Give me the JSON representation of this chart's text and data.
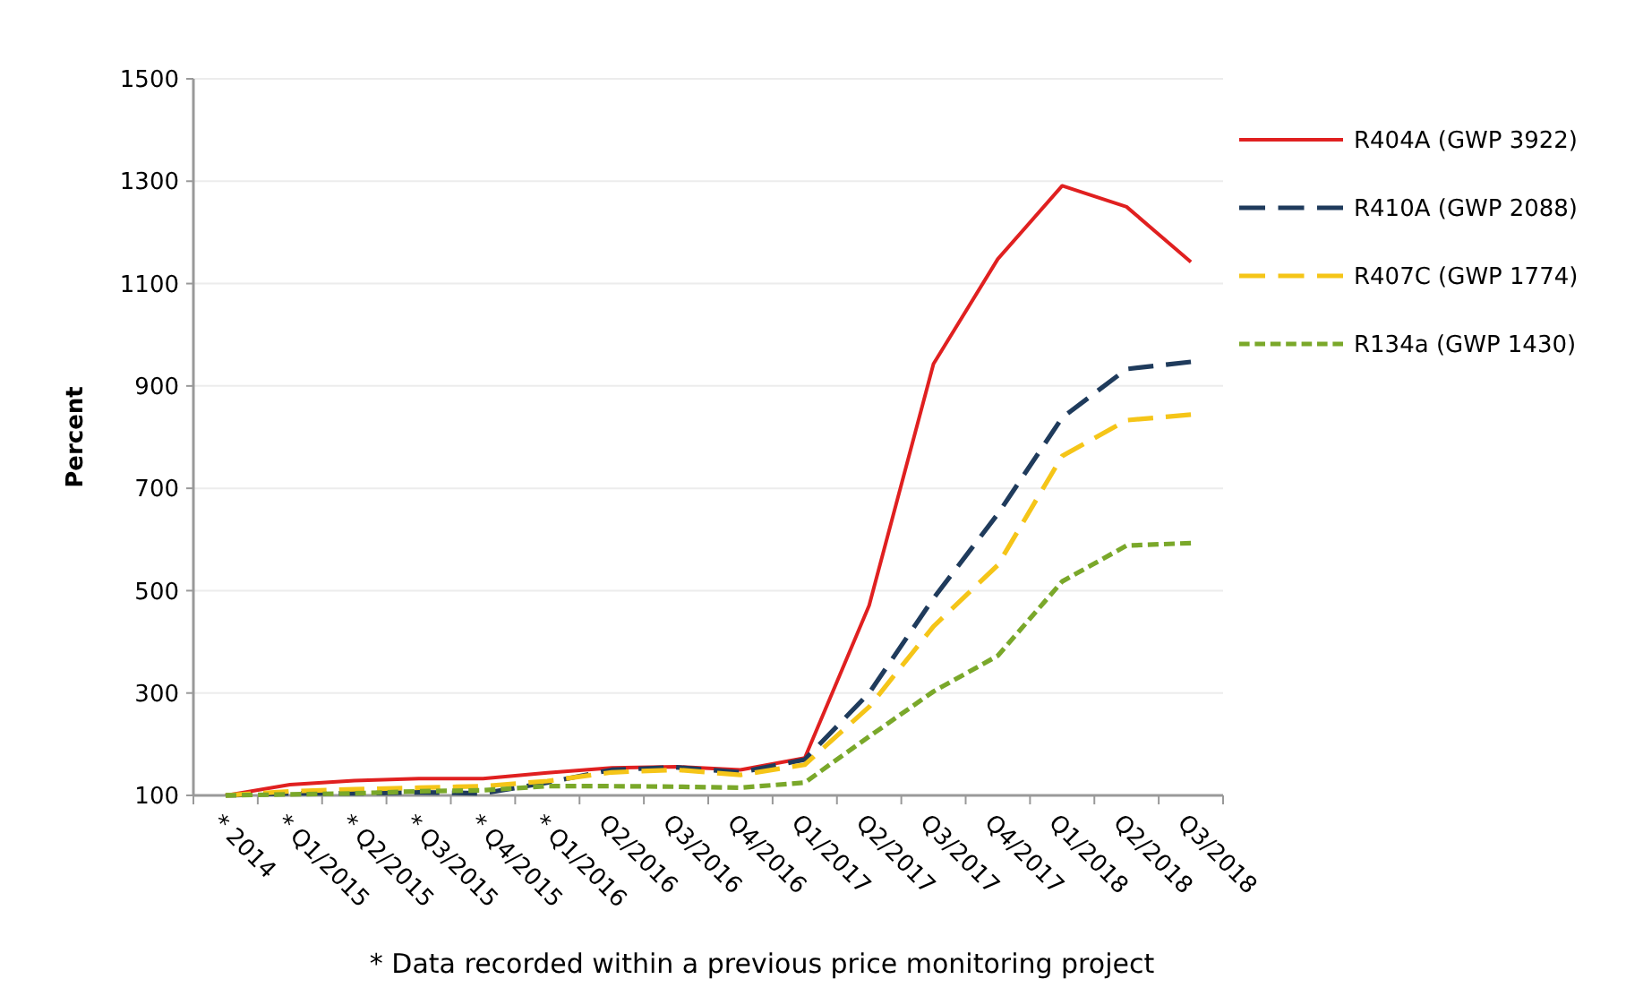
{
  "chart_data": {
    "type": "line",
    "ylabel": "Percent",
    "categories": [
      "* 2014",
      "* Q1/2015",
      "* Q2/2015",
      "* Q3/2015",
      "* Q4/2015",
      "* Q1/2016",
      "Q2/2016",
      "Q3/2016",
      "Q4/2016",
      "Q1/2017",
      "Q2/2017",
      "Q3/2017",
      "Q4/2017",
      "Q1/2018",
      "Q2/2018",
      "Q3/2018"
    ],
    "series": [
      {
        "name": "R404A (GWP 3922)",
        "color": "#e02020",
        "line_style": "solid",
        "values": [
          100,
          121,
          129,
          133,
          133,
          144,
          154,
          156,
          150,
          173,
          471,
          943,
          1148,
          1291,
          1250,
          1142
        ]
      },
      {
        "name": "R410A (GWP 2088)",
        "color": "#1f3b5c",
        "line_style": "dashed",
        "values": [
          100,
          104,
          104,
          106,
          104,
          125,
          150,
          155,
          145,
          170,
          300,
          485,
          650,
          838,
          933,
          947
        ]
      },
      {
        "name": "R407C (GWP 1774)",
        "color": "#f5c518",
        "line_style": "dashed",
        "values": [
          100,
          108,
          112,
          115,
          118,
          128,
          145,
          150,
          140,
          160,
          273,
          430,
          550,
          763,
          833,
          844
        ]
      },
      {
        "name": "R134a (GWP 1430)",
        "color": "#7aa82a",
        "line_style": "dotted",
        "values": [
          100,
          102,
          104,
          108,
          110,
          118,
          118,
          117,
          115,
          125,
          215,
          303,
          373,
          518,
          588,
          593
        ]
      }
    ],
    "ylim": [
      100,
      1500
    ],
    "yticks": [
      100,
      300,
      500,
      700,
      900,
      1100,
      1300,
      1500
    ],
    "grid": "y",
    "legend": "right",
    "marker": "none",
    "annotations": [
      "* Data recorded within a previous price monitoring project"
    ]
  }
}
